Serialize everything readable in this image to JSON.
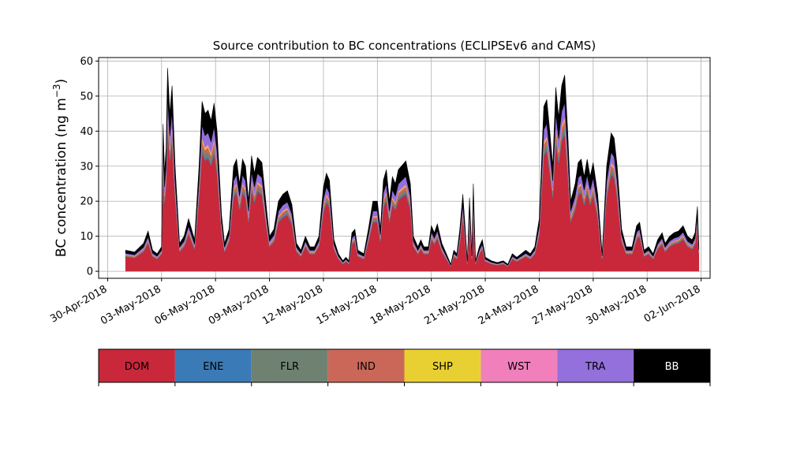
{
  "chart_data": {
    "type": "area",
    "stacked": true,
    "title": "Source contribution to BC concentrations (ECLIPSEv6 and CAMS)",
    "ylabel": "BC concentration (ng m",
    "ylabel_superscript": "−3",
    "ylabel_close": ")",
    "xlabel": "",
    "ylim": [
      -2,
      61
    ],
    "yticks": [
      0,
      10,
      20,
      30,
      40,
      50,
      60
    ],
    "xlim": [
      "2018-04-29T12:00",
      "2018-06-02T12:00"
    ],
    "xticks": [
      {
        "date": "2018-04-30",
        "label": "30-Apr-2018"
      },
      {
        "date": "2018-05-03",
        "label": "03-May-2018"
      },
      {
        "date": "2018-05-06",
        "label": "06-May-2018"
      },
      {
        "date": "2018-05-09",
        "label": "09-May-2018"
      },
      {
        "date": "2018-05-12",
        "label": "12-May-2018"
      },
      {
        "date": "2018-05-15",
        "label": "15-May-2018"
      },
      {
        "date": "2018-05-18",
        "label": "18-May-2018"
      },
      {
        "date": "2018-05-21",
        "label": "21-May-2018"
      },
      {
        "date": "2018-05-24",
        "label": "24-May-2018"
      },
      {
        "date": "2018-05-27",
        "label": "27-May-2018"
      },
      {
        "date": "2018-05-30",
        "label": "30-May-2018"
      },
      {
        "date": "2018-06-02",
        "label": "02-Jun-2018"
      }
    ],
    "grid": true,
    "total_points": [
      [
        "2018-05-01T00:00",
        6
      ],
      [
        "2018-05-01T12:00",
        5.5
      ],
      [
        "2018-05-02T00:00",
        8
      ],
      [
        "2018-05-02T06:00",
        11.5
      ],
      [
        "2018-05-02T12:00",
        6
      ],
      [
        "2018-05-02T18:00",
        5
      ],
      [
        "2018-05-03T00:00",
        7
      ],
      [
        "2018-05-03T02:00",
        42
      ],
      [
        "2018-05-03T04:00",
        28
      ],
      [
        "2018-05-03T06:00",
        35
      ],
      [
        "2018-05-03T08:00",
        58
      ],
      [
        "2018-05-03T11:00",
        45
      ],
      [
        "2018-05-03T14:00",
        53
      ],
      [
        "2018-05-03T18:00",
        30
      ],
      [
        "2018-05-04T00:00",
        8
      ],
      [
        "2018-05-04T06:00",
        10
      ],
      [
        "2018-05-04T12:00",
        15
      ],
      [
        "2018-05-04T16:00",
        12
      ],
      [
        "2018-05-04T20:00",
        9
      ],
      [
        "2018-05-05T02:00",
        30
      ],
      [
        "2018-05-05T06:00",
        48.5
      ],
      [
        "2018-05-05T10:00",
        45
      ],
      [
        "2018-05-05T14:00",
        46
      ],
      [
        "2018-05-05T18:00",
        43
      ],
      [
        "2018-05-05T22:00",
        48
      ],
      [
        "2018-05-06T02:00",
        40
      ],
      [
        "2018-05-06T08:00",
        16
      ],
      [
        "2018-05-06T12:00",
        8
      ],
      [
        "2018-05-06T18:00",
        12
      ],
      [
        "2018-05-07T00:00",
        30
      ],
      [
        "2018-05-07T04:00",
        32
      ],
      [
        "2018-05-07T08:00",
        25
      ],
      [
        "2018-05-07T12:00",
        32
      ],
      [
        "2018-05-07T16:00",
        30
      ],
      [
        "2018-05-07T20:00",
        20
      ],
      [
        "2018-05-08T00:00",
        33
      ],
      [
        "2018-05-08T04:00",
        28
      ],
      [
        "2018-05-08T08:00",
        32.5
      ],
      [
        "2018-05-08T14:00",
        31
      ],
      [
        "2018-05-08T20:00",
        18
      ],
      [
        "2018-05-09T00:00",
        10
      ],
      [
        "2018-05-09T06:00",
        12
      ],
      [
        "2018-05-09T12:00",
        20
      ],
      [
        "2018-05-09T18:00",
        22
      ],
      [
        "2018-05-10T00:00",
        23
      ],
      [
        "2018-05-10T06:00",
        19
      ],
      [
        "2018-05-10T12:00",
        8
      ],
      [
        "2018-05-10T18:00",
        6
      ],
      [
        "2018-05-11T00:00",
        10
      ],
      [
        "2018-05-11T06:00",
        7
      ],
      [
        "2018-05-11T12:00",
        7
      ],
      [
        "2018-05-11T18:00",
        10
      ],
      [
        "2018-05-12T00:00",
        24
      ],
      [
        "2018-05-12T04:00",
        28
      ],
      [
        "2018-05-12T08:00",
        26
      ],
      [
        "2018-05-12T14:00",
        9
      ],
      [
        "2018-05-12T20:00",
        5
      ],
      [
        "2018-05-13T02:00",
        3
      ],
      [
        "2018-05-13T06:00",
        4
      ],
      [
        "2018-05-13T10:00",
        3
      ],
      [
        "2018-05-13T14:00",
        11
      ],
      [
        "2018-05-13T18:00",
        12
      ],
      [
        "2018-05-13T22:00",
        6
      ],
      [
        "2018-05-14T06:00",
        5
      ],
      [
        "2018-05-14T12:00",
        12
      ],
      [
        "2018-05-14T18:00",
        20
      ],
      [
        "2018-05-15T00:00",
        20
      ],
      [
        "2018-05-15T04:00",
        12
      ],
      [
        "2018-05-15T08:00",
        26
      ],
      [
        "2018-05-15T12:00",
        29
      ],
      [
        "2018-05-15T16:00",
        20
      ],
      [
        "2018-05-15T20:00",
        27
      ],
      [
        "2018-05-16T00:00",
        25
      ],
      [
        "2018-05-16T04:00",
        29
      ],
      [
        "2018-05-16T08:00",
        30
      ],
      [
        "2018-05-16T14:00",
        31.5
      ],
      [
        "2018-05-16T20:00",
        25
      ],
      [
        "2018-05-17T00:00",
        10
      ],
      [
        "2018-05-17T06:00",
        7
      ],
      [
        "2018-05-17T10:00",
        9
      ],
      [
        "2018-05-17T14:00",
        7
      ],
      [
        "2018-05-17T20:00",
        7
      ],
      [
        "2018-05-18T00:00",
        13
      ],
      [
        "2018-05-18T04:00",
        11
      ],
      [
        "2018-05-18T08:00",
        13.5
      ],
      [
        "2018-05-18T14:00",
        8
      ],
      [
        "2018-05-18T20:00",
        5
      ],
      [
        "2018-05-19T02:00",
        2
      ],
      [
        "2018-05-19T06:00",
        6
      ],
      [
        "2018-05-19T10:00",
        5
      ],
      [
        "2018-05-19T14:00",
        12
      ],
      [
        "2018-05-19T18:00",
        22
      ],
      [
        "2018-05-19T21:00",
        13
      ],
      [
        "2018-05-20T00:00",
        3
      ],
      [
        "2018-05-20T03:00",
        21
      ],
      [
        "2018-05-20T06:00",
        5
      ],
      [
        "2018-05-20T08:00",
        25
      ],
      [
        "2018-05-20T11:00",
        3
      ],
      [
        "2018-05-20T16:00",
        7
      ],
      [
        "2018-05-20T20:00",
        9
      ],
      [
        "2018-05-21T00:00",
        4
      ],
      [
        "2018-05-21T08:00",
        3
      ],
      [
        "2018-05-21T16:00",
        2.5
      ],
      [
        "2018-05-22T00:00",
        3
      ],
      [
        "2018-05-22T06:00",
        2
      ],
      [
        "2018-05-22T12:00",
        5
      ],
      [
        "2018-05-22T18:00",
        4
      ],
      [
        "2018-05-23T00:00",
        5
      ],
      [
        "2018-05-23T06:00",
        6
      ],
      [
        "2018-05-23T12:00",
        5
      ],
      [
        "2018-05-23T18:00",
        7
      ],
      [
        "2018-05-24T00:00",
        15
      ],
      [
        "2018-05-24T06:00",
        47
      ],
      [
        "2018-05-24T10:00",
        49
      ],
      [
        "2018-05-24T14:00",
        40
      ],
      [
        "2018-05-24T18:00",
        30
      ],
      [
        "2018-05-24T22:00",
        52.5
      ],
      [
        "2018-05-25T02:00",
        44
      ],
      [
        "2018-05-25T06:00",
        53
      ],
      [
        "2018-05-25T10:00",
        56
      ],
      [
        "2018-05-25T14:00",
        40
      ],
      [
        "2018-05-25T18:00",
        20
      ],
      [
        "2018-05-26T00:00",
        25
      ],
      [
        "2018-05-26T04:00",
        31
      ],
      [
        "2018-05-26T08:00",
        32
      ],
      [
        "2018-05-26T12:00",
        27
      ],
      [
        "2018-05-26T16:00",
        32
      ],
      [
        "2018-05-26T20:00",
        27
      ],
      [
        "2018-05-27T00:00",
        31
      ],
      [
        "2018-05-27T06:00",
        22
      ],
      [
        "2018-05-27T12:00",
        5
      ],
      [
        "2018-05-27T18:00",
        30
      ],
      [
        "2018-05-28T00:00",
        39.5
      ],
      [
        "2018-05-28T04:00",
        38
      ],
      [
        "2018-05-28T08:00",
        30
      ],
      [
        "2018-05-28T14:00",
        12
      ],
      [
        "2018-05-28T20:00",
        7
      ],
      [
        "2018-05-29T04:00",
        7
      ],
      [
        "2018-05-29T10:00",
        13
      ],
      [
        "2018-05-29T14:00",
        14
      ],
      [
        "2018-05-29T20:00",
        6
      ],
      [
        "2018-05-30T02:00",
        7
      ],
      [
        "2018-05-30T08:00",
        5
      ],
      [
        "2018-05-30T14:00",
        9
      ],
      [
        "2018-05-30T20:00",
        11
      ],
      [
        "2018-05-31T00:00",
        8
      ],
      [
        "2018-05-31T06:00",
        10
      ],
      [
        "2018-05-31T12:00",
        11
      ],
      [
        "2018-05-31T18:00",
        11.5
      ],
      [
        "2018-06-01T00:00",
        13
      ],
      [
        "2018-06-01T06:00",
        10
      ],
      [
        "2018-06-01T12:00",
        9
      ],
      [
        "2018-06-01T16:00",
        11
      ],
      [
        "2018-06-01T19:00",
        18.5
      ],
      [
        "2018-06-01T21:00",
        7
      ]
    ],
    "series": [
      {
        "name": "DOM",
        "color": "#c8283a",
        "fraction": 0.7
      },
      {
        "name": "ENE",
        "color": "#3a7ab6",
        "fraction": 0.01
      },
      {
        "name": "FLR",
        "color": "#6f8272",
        "fraction": 0.03
      },
      {
        "name": "IND",
        "color": "#cb6758",
        "fraction": 0.03
      },
      {
        "name": "SHP",
        "color": "#e9d032",
        "fraction": 0.01
      },
      {
        "name": "WST",
        "color": "#f07fbc",
        "fraction": 0.01
      },
      {
        "name": "TRA",
        "color": "#9370db",
        "fraction": 0.07
      },
      {
        "name": "BB",
        "color": "#000000",
        "fraction": 0.14
      }
    ],
    "legend_position": "below"
  },
  "legend": {
    "items": [
      {
        "label": "DOM",
        "color": "#c8283a",
        "text_color": "#000000"
      },
      {
        "label": "ENE",
        "color": "#3a7ab6",
        "text_color": "#000000"
      },
      {
        "label": "FLR",
        "color": "#6f8272",
        "text_color": "#000000"
      },
      {
        "label": "IND",
        "color": "#cb6758",
        "text_color": "#000000"
      },
      {
        "label": "SHP",
        "color": "#e9d032",
        "text_color": "#000000"
      },
      {
        "label": "WST",
        "color": "#f07fbc",
        "text_color": "#000000"
      },
      {
        "label": "TRA",
        "color": "#9370db",
        "text_color": "#000000"
      },
      {
        "label": "BB",
        "color": "#000000",
        "text_color": "#ffffff"
      }
    ]
  }
}
